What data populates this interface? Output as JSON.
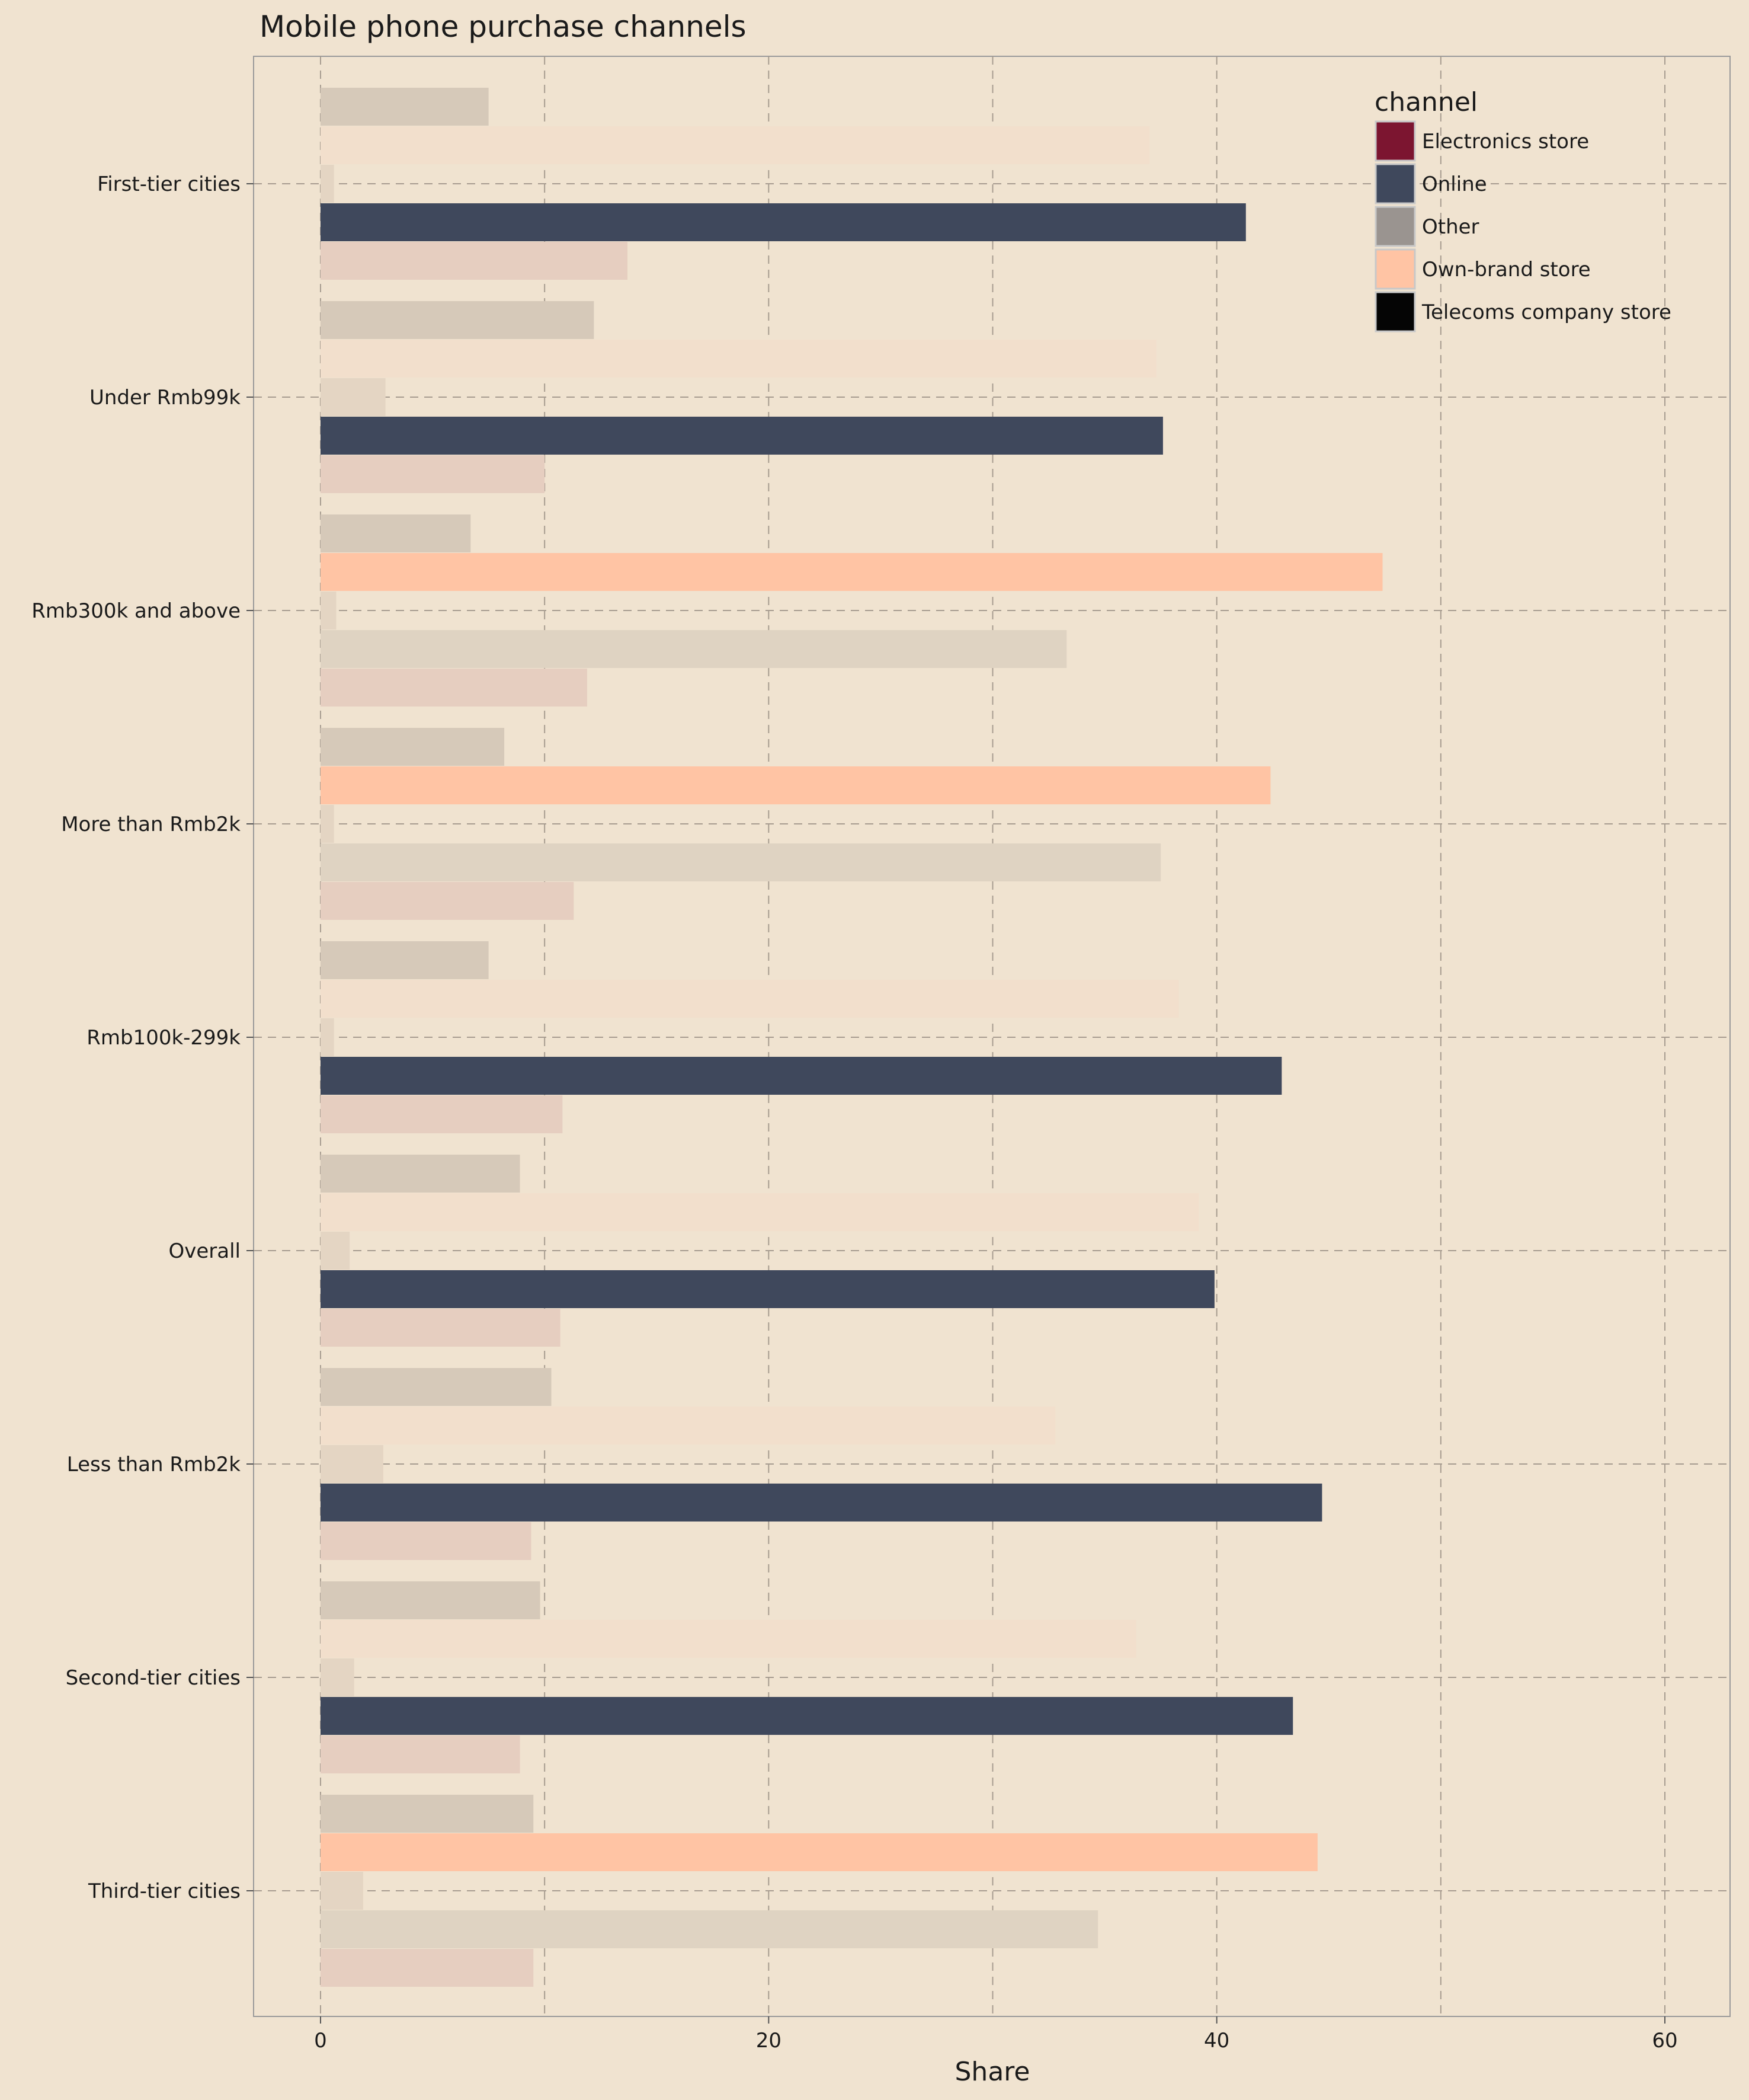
{
  "chart_data": {
    "type": "bar",
    "orientation": "horizontal",
    "title": "Mobile phone purchase channels",
    "xlabel": "Share",
    "ylabel": "",
    "xlim": [
      -3,
      63
    ],
    "xticks": [
      0,
      20,
      40,
      60
    ],
    "grid": true,
    "legend": {
      "title": "channel",
      "placement": "top-right",
      "entries": [
        {
          "name": "Electronics store",
          "color": "#7c1530"
        },
        {
          "name": "Online",
          "color": "#3f485c"
        },
        {
          "name": "Other",
          "color": "#9a9490"
        },
        {
          "name": "Own-brand store",
          "color": "#ffc4a4"
        },
        {
          "name": "Telecoms company store",
          "color": "#050505"
        }
      ]
    },
    "categories": [
      "First-tier cities",
      "Under Rmb99k",
      "Rmb300k and above",
      "More than Rmb2k",
      "Rmb100k-299k",
      "Overall",
      "Less than Rmb2k",
      "Second-tier cities",
      "Third-tier cities"
    ],
    "highlighted": [
      "Online",
      "Online",
      "Own-brand store",
      "Own-brand store",
      "Online",
      "Online",
      "Online",
      "Online",
      "Own-brand store"
    ],
    "series": [
      {
        "name": "Telecoms company store",
        "values": [
          7.5,
          12.2,
          6.7,
          8.2,
          7.5,
          8.9,
          10.3,
          9.8,
          9.5
        ]
      },
      {
        "name": "Own-brand store",
        "values": [
          37.0,
          37.3,
          47.4,
          42.4,
          38.3,
          39.2,
          32.8,
          36.4,
          44.5
        ]
      },
      {
        "name": "Other",
        "values": [
          0.6,
          2.9,
          0.7,
          0.6,
          0.6,
          1.3,
          2.8,
          1.5,
          1.9
        ]
      },
      {
        "name": "Online",
        "values": [
          41.3,
          37.6,
          33.3,
          37.5,
          42.9,
          39.9,
          44.7,
          43.4,
          34.7
        ]
      },
      {
        "name": "Electronics store",
        "values": [
          13.7,
          10.0,
          11.9,
          11.3,
          10.8,
          10.7,
          9.4,
          8.9,
          9.5
        ]
      }
    ]
  }
}
